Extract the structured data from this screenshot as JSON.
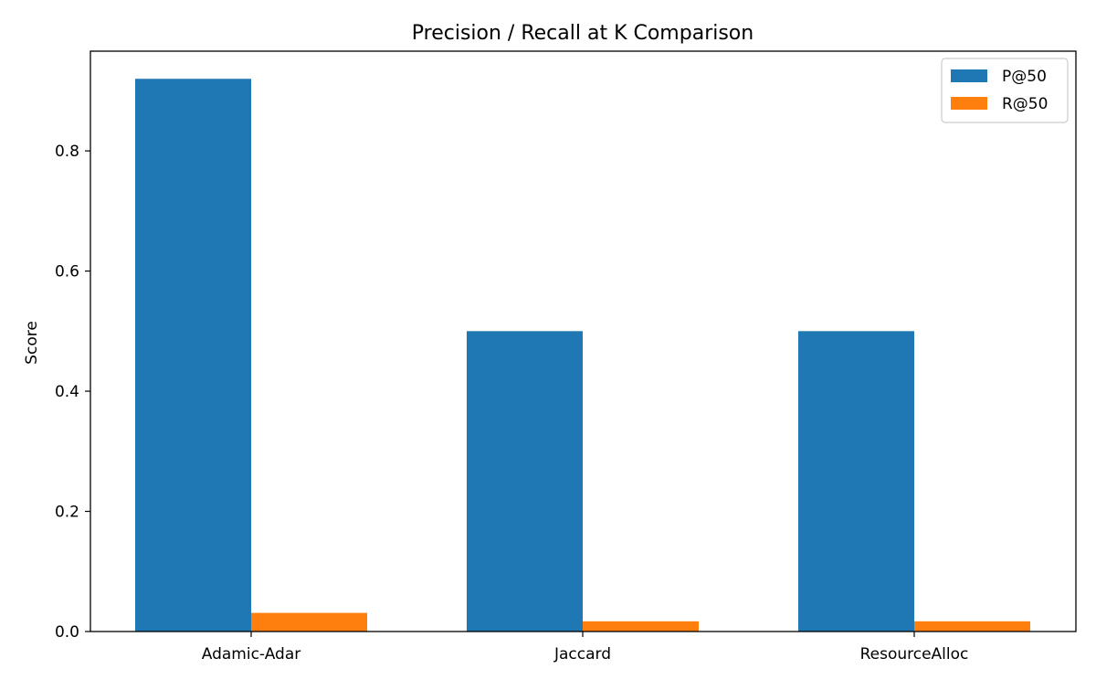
{
  "chart_data": {
    "type": "bar",
    "title": "Precision / Recall at K Comparison",
    "xlabel": "",
    "ylabel": "Score",
    "categories": [
      "Adamic-Adar",
      "Jaccard",
      "ResourceAlloc"
    ],
    "series": [
      {
        "name": "P@50",
        "color": "#1f77b4",
        "values": [
          0.92,
          0.5,
          0.5
        ]
      },
      {
        "name": "R@50",
        "color": "#ff7f0e",
        "values": [
          0.031,
          0.017,
          0.017
        ]
      }
    ],
    "ylim": [
      0,
      0.966
    ],
    "yticks": [
      0.0,
      0.2,
      0.4,
      0.6,
      0.8
    ],
    "ytick_labels": [
      "0.0",
      "0.2",
      "0.4",
      "0.6",
      "0.8"
    ],
    "grid": false,
    "legend_position": "top-right"
  }
}
